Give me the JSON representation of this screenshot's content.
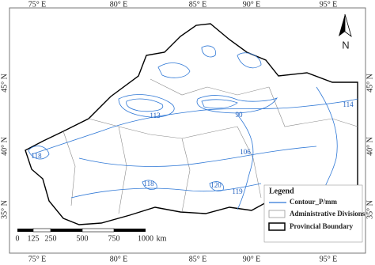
{
  "map": {
    "lon_labels_top": [
      "75° E",
      "80° E",
      "85° E",
      "90° E",
      "95° E"
    ],
    "lon_labels_bottom": [
      "75° E",
      "80° E",
      "85° E",
      "90° E",
      "95° E"
    ],
    "lat_labels_left": [
      "45° N",
      "40° N",
      "35° N"
    ],
    "lat_labels_right": [
      "45° N",
      "40° N",
      "35° N"
    ],
    "north": "N",
    "legend": {
      "title": "Legend",
      "items": [
        "Contour_P/mm",
        "Administrative Divisions",
        "Provincial Boundary"
      ]
    },
    "scale": [
      "0",
      "125",
      "250",
      "500",
      "750",
      "1000",
      "km"
    ],
    "contour_labels": [
      "90",
      "114",
      "113",
      "106",
      "120",
      "118",
      "119",
      "118"
    ]
  }
}
